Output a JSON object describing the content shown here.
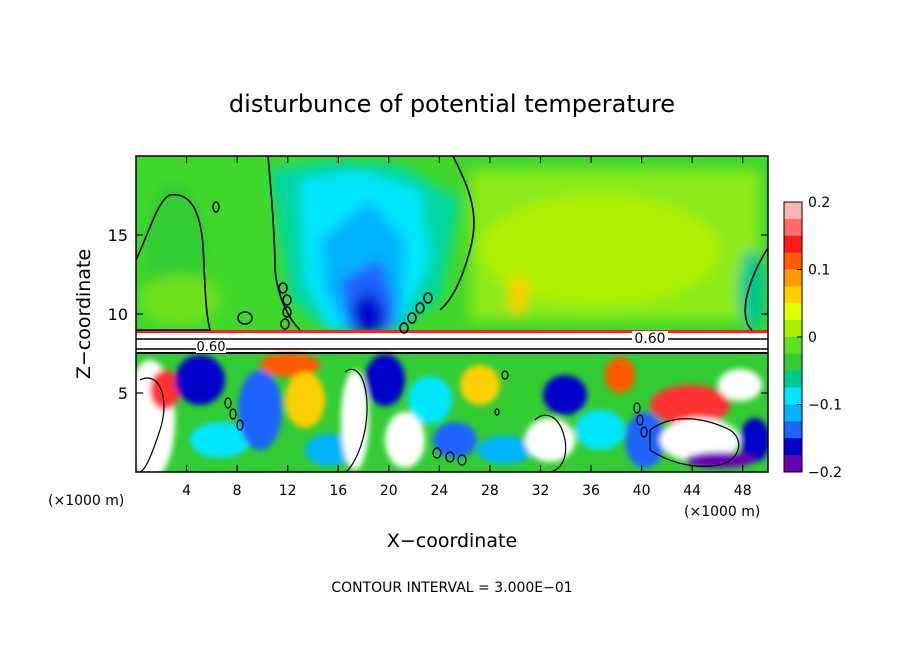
{
  "chart_data": {
    "type": "heatmap",
    "title": "disturbunce of potential temperature",
    "xlabel": "X−coordinate",
    "ylabel": "Z−coordinate",
    "x_unit_left": "(×1000 m)",
    "x_unit_right": "(×1000 m)",
    "xlim": [
      0,
      50
    ],
    "ylim": [
      0,
      20
    ],
    "x_ticks": [
      "4",
      "8",
      "12",
      "16",
      "20",
      "24",
      "28",
      "32",
      "36",
      "40",
      "44",
      "48"
    ],
    "y_ticks": [
      "5",
      "10",
      "15"
    ],
    "colorbar": {
      "min": -0.2,
      "max": 0.2,
      "tick_labels": [
        "0.2",
        "0.1",
        "0",
        "−0.1",
        "−0.2"
      ],
      "colors": [
        "#fbb6b6",
        "#ff6a6a",
        "#ff1a1a",
        "#ff5a00",
        "#ff9a00",
        "#ffd000",
        "#e6ff00",
        "#a8f000",
        "#60e020",
        "#33cc33",
        "#00c890",
        "#00e6ff",
        "#00b4ff",
        "#1e64ff",
        "#0000c8",
        "#6a00b4"
      ]
    },
    "contour_labels": [
      "0.60",
      "0.60"
    ],
    "footer": "CONTOUR INTERVAL = 3.000E−01",
    "grid": false,
    "legend": "colorbar-right"
  }
}
